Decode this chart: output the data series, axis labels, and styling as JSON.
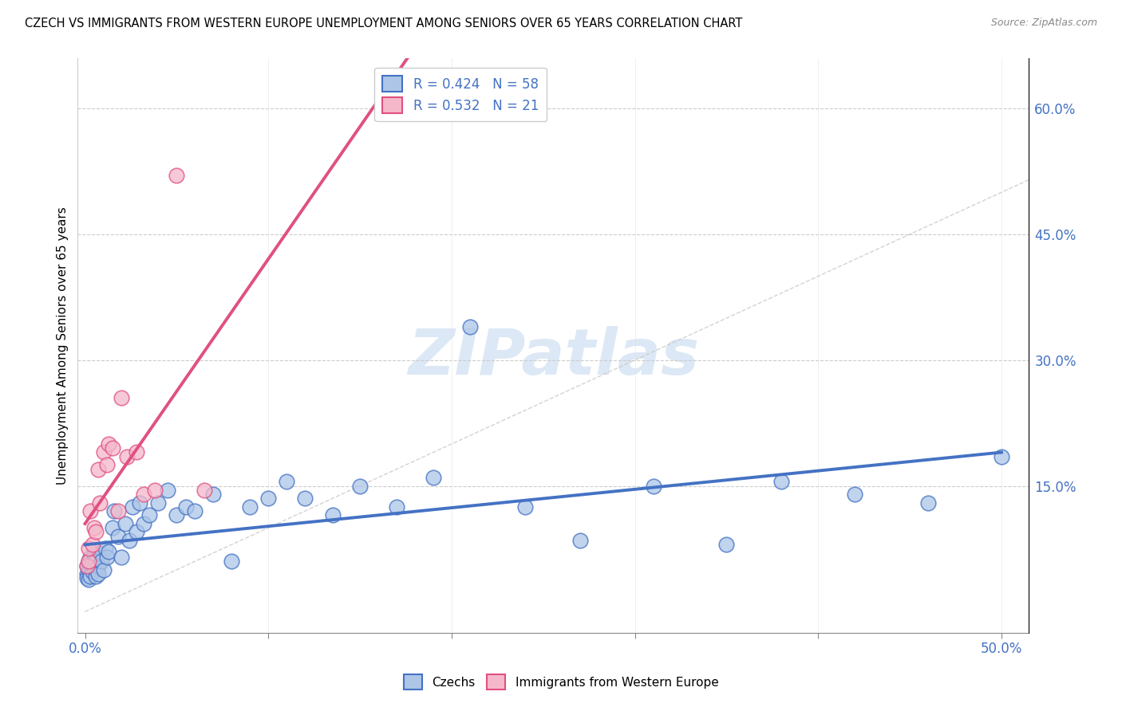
{
  "title": "CZECH VS IMMIGRANTS FROM WESTERN EUROPE UNEMPLOYMENT AMONG SENIORS OVER 65 YEARS CORRELATION CHART",
  "source": "Source: ZipAtlas.com",
  "ylabel": "Unemployment Among Seniors over 65 years",
  "color_czech": "#adc6e8",
  "color_immigrant": "#f5b8cb",
  "color_czech_line": "#4472C4",
  "color_immigrant_line": "#e05080",
  "color_diagonal": "#c8c8c8",
  "watermark_text": "ZIPatlas",
  "watermark_color": "#dce8f5",
  "xlim": [
    -0.004,
    0.515
  ],
  "ylim": [
    -0.025,
    0.66
  ],
  "xtick_vals": [
    0.0,
    0.1,
    0.2,
    0.3,
    0.4,
    0.5
  ],
  "xtick_labels": [
    "0.0%",
    "",
    "",
    "",
    "",
    "50.0%"
  ],
  "ytick_vals": [
    0.0,
    0.15,
    0.3,
    0.45,
    0.6
  ],
  "ytick_labels": [
    "",
    "15.0%",
    "30.0%",
    "45.0%",
    "60.0%"
  ],
  "czech_x": [
    0.001,
    0.001,
    0.001,
    0.002,
    0.002,
    0.002,
    0.003,
    0.003,
    0.003,
    0.004,
    0.004,
    0.005,
    0.005,
    0.006,
    0.006,
    0.007,
    0.007,
    0.008,
    0.009,
    0.01,
    0.011,
    0.012,
    0.013,
    0.015,
    0.016,
    0.018,
    0.02,
    0.022,
    0.024,
    0.026,
    0.028,
    0.03,
    0.032,
    0.035,
    0.04,
    0.045,
    0.05,
    0.055,
    0.06,
    0.07,
    0.08,
    0.09,
    0.1,
    0.11,
    0.12,
    0.135,
    0.15,
    0.17,
    0.19,
    0.21,
    0.24,
    0.27,
    0.31,
    0.35,
    0.38,
    0.42,
    0.46,
    0.5
  ],
  "czech_y": [
    0.055,
    0.045,
    0.04,
    0.05,
    0.06,
    0.038,
    0.055,
    0.042,
    0.065,
    0.048,
    0.058,
    0.052,
    0.068,
    0.042,
    0.06,
    0.055,
    0.045,
    0.07,
    0.06,
    0.05,
    0.075,
    0.065,
    0.072,
    0.1,
    0.12,
    0.09,
    0.065,
    0.105,
    0.085,
    0.125,
    0.095,
    0.13,
    0.105,
    0.115,
    0.13,
    0.145,
    0.115,
    0.125,
    0.12,
    0.14,
    0.06,
    0.125,
    0.135,
    0.155,
    0.135,
    0.115,
    0.15,
    0.125,
    0.16,
    0.34,
    0.125,
    0.085,
    0.15,
    0.08,
    0.155,
    0.14,
    0.13,
    0.185
  ],
  "immigrant_x": [
    0.001,
    0.002,
    0.002,
    0.003,
    0.004,
    0.005,
    0.006,
    0.007,
    0.008,
    0.01,
    0.012,
    0.013,
    0.015,
    0.018,
    0.02,
    0.023,
    0.028,
    0.032,
    0.038,
    0.05,
    0.065
  ],
  "immigrant_y": [
    0.055,
    0.06,
    0.075,
    0.12,
    0.08,
    0.1,
    0.095,
    0.17,
    0.13,
    0.19,
    0.175,
    0.2,
    0.195,
    0.12,
    0.255,
    0.185,
    0.19,
    0.14,
    0.145,
    0.52,
    0.145
  ],
  "legend_text1": "R = 0.424   N = 58",
  "legend_text2": "R = 0.532   N = 21"
}
